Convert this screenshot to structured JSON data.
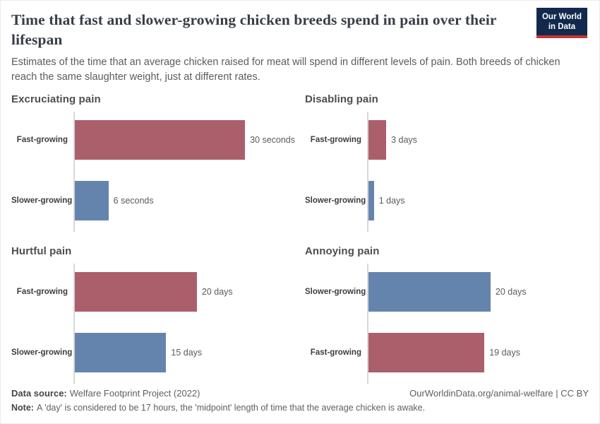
{
  "header": {
    "title": "Time that fast and slower-growing chicken breeds spend in pain over their lifespan",
    "subtitle": "Estimates of the time that an average chicken raised for meat will spend in different levels of pain. Both breeds of chicken reach the same slaughter weight, just at different rates.",
    "logo": {
      "line1": "Our World",
      "line2": "in Data"
    }
  },
  "colors": {
    "fast_growing": "#ab5f6b",
    "slower_growing": "#6584ad",
    "axis": "#d8d8d8",
    "logo_bg": "#12294d",
    "logo_accent": "#c5352d",
    "title_text": "#383e48"
  },
  "chart_data": [
    {
      "type": "bar",
      "orientation": "horizontal",
      "title": "Excruciating pain",
      "unit": "seconds",
      "categories": [
        "Fast-growing",
        "Slower-growing"
      ],
      "values": [
        30,
        6
      ],
      "value_labels": [
        "30 seconds",
        "6 seconds"
      ],
      "bar_colors": [
        "#ab5f6b",
        "#6584ad"
      ],
      "xlim": [
        0,
        38.6
      ],
      "grid": false,
      "legend": false
    },
    {
      "type": "bar",
      "orientation": "horizontal",
      "title": "Disabling pain",
      "unit": "days",
      "categories": [
        "Fast-growing",
        "Slower-growing"
      ],
      "values": [
        3,
        1
      ],
      "value_labels": [
        "3 days",
        "1 days"
      ],
      "bar_colors": [
        "#ab5f6b",
        "#6584ad"
      ],
      "xlim": [
        0,
        36
      ],
      "grid": false,
      "legend": false
    },
    {
      "type": "bar",
      "orientation": "horizontal",
      "title": "Hurtful pain",
      "unit": "days",
      "categories": [
        "Fast-growing",
        "Slower-growing"
      ],
      "values": [
        20,
        15
      ],
      "value_labels": [
        "20 days",
        "15 days"
      ],
      "bar_colors": [
        "#ab5f6b",
        "#6584ad"
      ],
      "xlim": [
        0,
        36
      ],
      "grid": false,
      "legend": false
    },
    {
      "type": "bar",
      "orientation": "horizontal",
      "title": "Annoying pain",
      "unit": "days",
      "categories": [
        "Slower-growing",
        "Fast-growing"
      ],
      "values": [
        20,
        19
      ],
      "value_labels": [
        "20 days",
        "19 days"
      ],
      "bar_colors": [
        "#6584ad",
        "#ab5f6b"
      ],
      "xlim": [
        0,
        36
      ],
      "grid": false,
      "legend": false
    }
  ],
  "footer": {
    "source_label": "Data source:",
    "source_value": "Welfare Footprint Project (2022)",
    "credit": "OurWorldinData.org/animal-welfare | CC BY",
    "note_label": "Note:",
    "note_value": "A 'day' is considered to be 17 hours, the 'midpoint' length of time that the average chicken is awake."
  }
}
